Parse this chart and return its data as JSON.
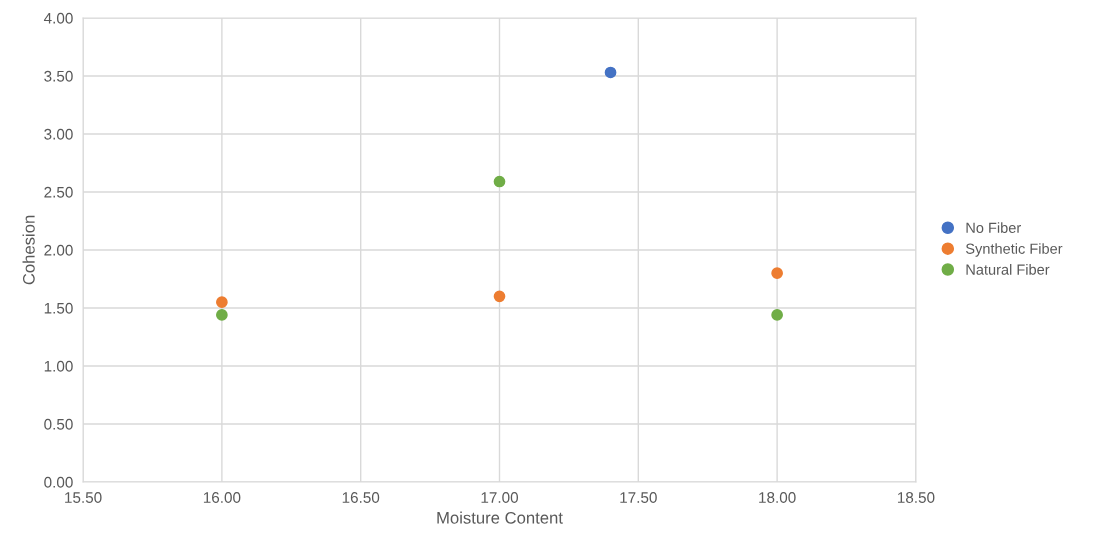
{
  "chart_data": {
    "type": "scatter",
    "xlabel": "Moisture Content",
    "ylabel": "Cohesion",
    "series": [
      {
        "name": "No Fiber",
        "color": "#4472c4",
        "x": [
          17.4
        ],
        "values": [
          3.53
        ]
      },
      {
        "name": "Synthetic Fiber",
        "color": "#ed7d31",
        "x": [
          16.0,
          17.0,
          18.0
        ],
        "values": [
          1.55,
          1.6,
          1.8
        ]
      },
      {
        "name": "Natural Fiber",
        "color": "#70ad47",
        "x": [
          16.0,
          17.0,
          18.0
        ],
        "values": [
          1.44,
          2.59,
          1.44
        ]
      }
    ],
    "xlim": [
      15.5,
      18.5
    ],
    "xticks": [
      {
        "value": 15.5,
        "label": "15.50"
      },
      {
        "value": 16,
        "label": "16.00"
      },
      {
        "value": 16.5,
        "label": "16.50"
      },
      {
        "value": 17,
        "label": "17.00"
      },
      {
        "value": 17.5,
        "label": "17.50"
      },
      {
        "value": 18,
        "label": "18.00"
      },
      {
        "value": 18.5,
        "label": "18.50"
      }
    ],
    "ylim": [
      0,
      4
    ],
    "yticks": [
      {
        "value": 0,
        "label": "0.00"
      },
      {
        "value": 0.5,
        "label": "0.50"
      },
      {
        "value": 1,
        "label": "1.00"
      },
      {
        "value": 1.5,
        "label": "1.50"
      },
      {
        "value": 2,
        "label": "2.00"
      },
      {
        "value": 2.5,
        "label": "2.50"
      },
      {
        "value": 3,
        "label": "3.00"
      },
      {
        "value": 3.5,
        "label": "3.50"
      },
      {
        "value": 4,
        "label": "4.00"
      }
    ],
    "grid": true,
    "legend": "right",
    "marker": "circle"
  }
}
